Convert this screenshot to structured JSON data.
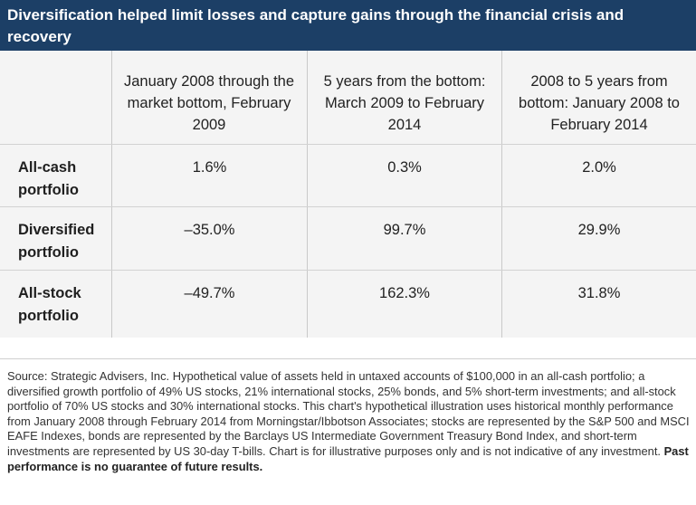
{
  "header": {
    "title": "Diversification helped limit losses and capture gains through the financial crisis and recovery"
  },
  "table": {
    "columns": [
      "January 2008 through the market bottom, February 2009",
      "5 years from the bottom: March 2009 to February 2014",
      "2008 to 5 years from bottom: January 2008 to February 2014"
    ],
    "rows": [
      {
        "label": "All-cash portfolio",
        "values": [
          "1.6%",
          "0.3%",
          "2.0%"
        ]
      },
      {
        "label": "Diversified portfolio",
        "values": [
          "–35.0%",
          "99.7%",
          "29.9%"
        ]
      },
      {
        "label": "All-stock portfolio",
        "values": [
          "–49.7%",
          "162.3%",
          "31.8%"
        ]
      }
    ]
  },
  "footnote": {
    "text": "Source: Strategic Advisers, Inc. Hypothetical value of assets held in untaxed accounts of $100,000 in an all-cash portfolio; a diversified growth portfolio of 49% US stocks, 21% international stocks, 25% bonds, and 5% short-term investments; and all-stock portfolio of 70% US stocks and 30% international stocks. This chart's hypothetical illustration uses historical monthly performance from January 2008 through February 2014 from Morningstar/Ibbotson Associates; stocks are represented by the S&P 500 and MSCI EAFE Indexes, bonds are represented by the Barclays US Intermediate Government Treasury Bond Index, and short-term investments are represented by US 30-day T-bills. Chart is for illustrative purposes only and is not indicative of any investment.",
    "disclaimer": "Past performance is no guarantee of future results."
  }
}
